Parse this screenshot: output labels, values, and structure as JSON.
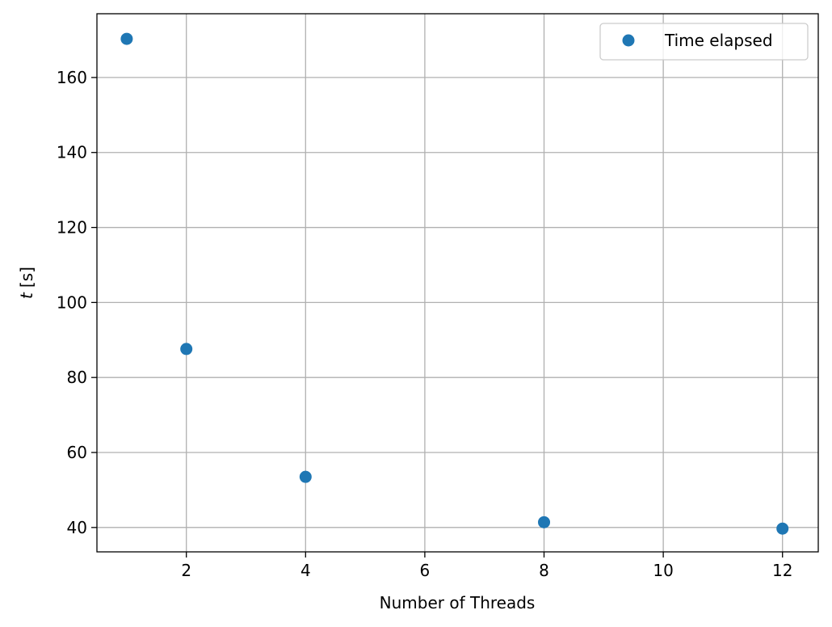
{
  "chart_data": {
    "type": "scatter",
    "title": "",
    "xlabel": "Number of Threads",
    "ylabel_symbol": "t",
    "ylabel_unit": "[s]",
    "xlim": [
      0.5,
      12.6
    ],
    "ylim": [
      33.5,
      177
    ],
    "x_ticks": [
      2,
      4,
      6,
      8,
      10,
      12
    ],
    "y_ticks": [
      40,
      60,
      80,
      100,
      120,
      140,
      160
    ],
    "grid": true,
    "legend_position": "top-right",
    "series": [
      {
        "name": "Time elapsed",
        "color": "#1f77b4",
        "marker": "circle",
        "x": [
          1,
          2,
          4,
          8,
          12
        ],
        "y": [
          170.3,
          87.6,
          53.5,
          41.4,
          39.7
        ]
      }
    ]
  }
}
